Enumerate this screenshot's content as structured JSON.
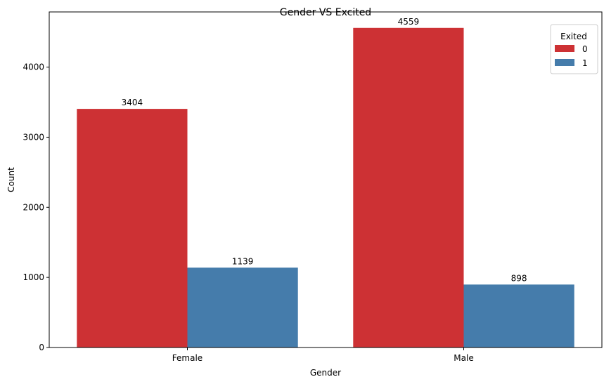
{
  "chart_data": {
    "type": "bar",
    "title": "Gender VS Excited",
    "xlabel": "Gender",
    "ylabel": "Count",
    "categories": [
      "Female",
      "Male"
    ],
    "series": [
      {
        "name": "0",
        "color": "#cd3134",
        "values": [
          3404,
          4559
        ]
      },
      {
        "name": "1",
        "color": "#457cab",
        "values": [
          1139,
          898
        ]
      }
    ],
    "ylim": [
      0,
      4787
    ],
    "yticks": [
      0,
      1000,
      2000,
      3000,
      4000
    ],
    "legend": {
      "title": "Exited",
      "position": "top-right"
    },
    "grid": false
  }
}
